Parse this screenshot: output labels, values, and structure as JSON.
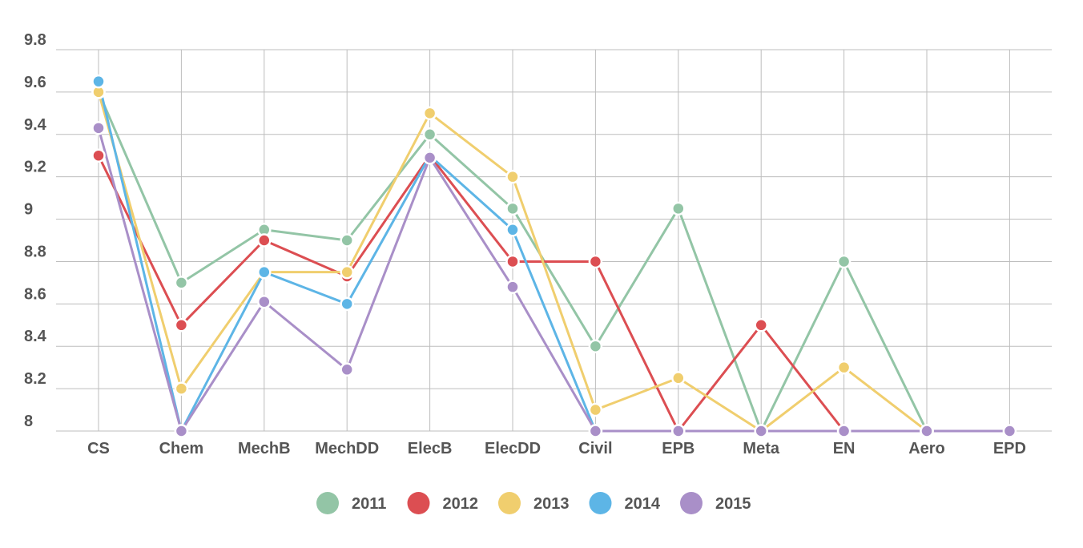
{
  "chart_data": {
    "type": "line",
    "categories": [
      "CS",
      "Chem",
      "MechB",
      "MechDD",
      "ElecB",
      "ElecDD",
      "Civil",
      "EPB",
      "Meta",
      "EN",
      "Aero",
      "EPD"
    ],
    "ylim": [
      8,
      9.8
    ],
    "yticks": [
      8,
      8.2,
      8.4,
      8.6,
      8.8,
      9,
      9.2,
      9.4,
      9.6,
      9.8
    ],
    "ytick_labels": [
      "8",
      "8.2",
      "8.4",
      "8.6",
      "8.8",
      "9",
      "9.2",
      "9.4",
      "9.6",
      "9.8"
    ],
    "grid": true,
    "legend_position": "bottom",
    "series": [
      {
        "name": "2011",
        "color": "#93c5a6",
        "values": [
          9.6,
          8.7,
          8.95,
          8.9,
          9.4,
          9.05,
          8.4,
          9.05,
          8.0,
          8.8,
          8.0,
          null
        ]
      },
      {
        "name": "2012",
        "color": "#dc4e52",
        "values": [
          9.3,
          8.5,
          8.9,
          8.73,
          9.3,
          8.8,
          8.8,
          8.0,
          8.5,
          8.0,
          null,
          null
        ]
      },
      {
        "name": "2013",
        "color": "#f0ce6e",
        "values": [
          9.6,
          8.2,
          8.75,
          8.75,
          9.5,
          9.2,
          8.1,
          8.25,
          8.0,
          8.3,
          8.0,
          null
        ]
      },
      {
        "name": "2014",
        "color": "#5db5e6",
        "values": [
          9.65,
          8.0,
          8.75,
          8.6,
          9.3,
          8.95,
          8.0,
          null,
          null,
          null,
          null,
          null
        ]
      },
      {
        "name": "2015",
        "color": "#a98fc8",
        "values": [
          9.43,
          8.0,
          8.61,
          8.29,
          9.29,
          8.68,
          8.0,
          8.0,
          8.0,
          8.0,
          8.0,
          8.0
        ]
      }
    ]
  }
}
